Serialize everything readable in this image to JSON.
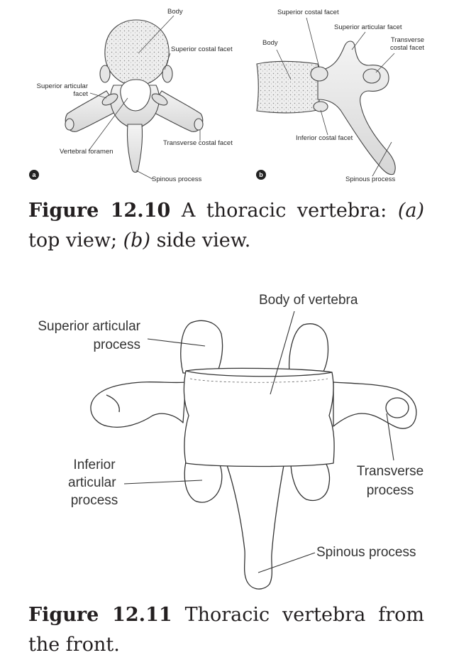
{
  "figure_12_10": {
    "panel_a": {
      "badge": "a",
      "labels": {
        "body": "Body",
        "superior_costal_facet": "Superior costal facet",
        "superior_articular_facet_1": "Superior articular",
        "superior_articular_facet_2": "facet",
        "vertebral_foramen": "Vertebral foramen",
        "transverse_costal_facet": "Transverse costal facet",
        "spinous_process": "Spinous process"
      }
    },
    "panel_b": {
      "badge": "b",
      "labels": {
        "superior_costal_facet": "Superior costal facet",
        "superior_articular_facet": "Superior articular facet",
        "body": "Body",
        "transverse_costal_facet_1": "Transverse",
        "transverse_costal_facet_2": "costal facet",
        "inferior_costal_facet": "Inferior costal facet",
        "spinous_process": "Spinous process"
      }
    },
    "caption": {
      "number": "Figure 12.10",
      "text_1": " A thoracic vertebra: ",
      "a": "(a)",
      "text_2": " top view; ",
      "b": "(b)",
      "text_3": " side view."
    }
  },
  "figure_12_11": {
    "labels": {
      "body_of_vertebra": "Body of vertebra",
      "superior_articular_process_1": "Superior articular",
      "superior_articular_process_2": "process",
      "inferior_articular_process_1": "Inferior",
      "inferior_articular_process_2": "articular",
      "inferior_articular_process_3": "process",
      "transverse_process_1": "Transverse",
      "transverse_process_2": "process",
      "spinous_process": "Spinous process"
    },
    "caption": {
      "number": "Figure 12.11",
      "text": " Thoracic vertebra from the front."
    }
  }
}
